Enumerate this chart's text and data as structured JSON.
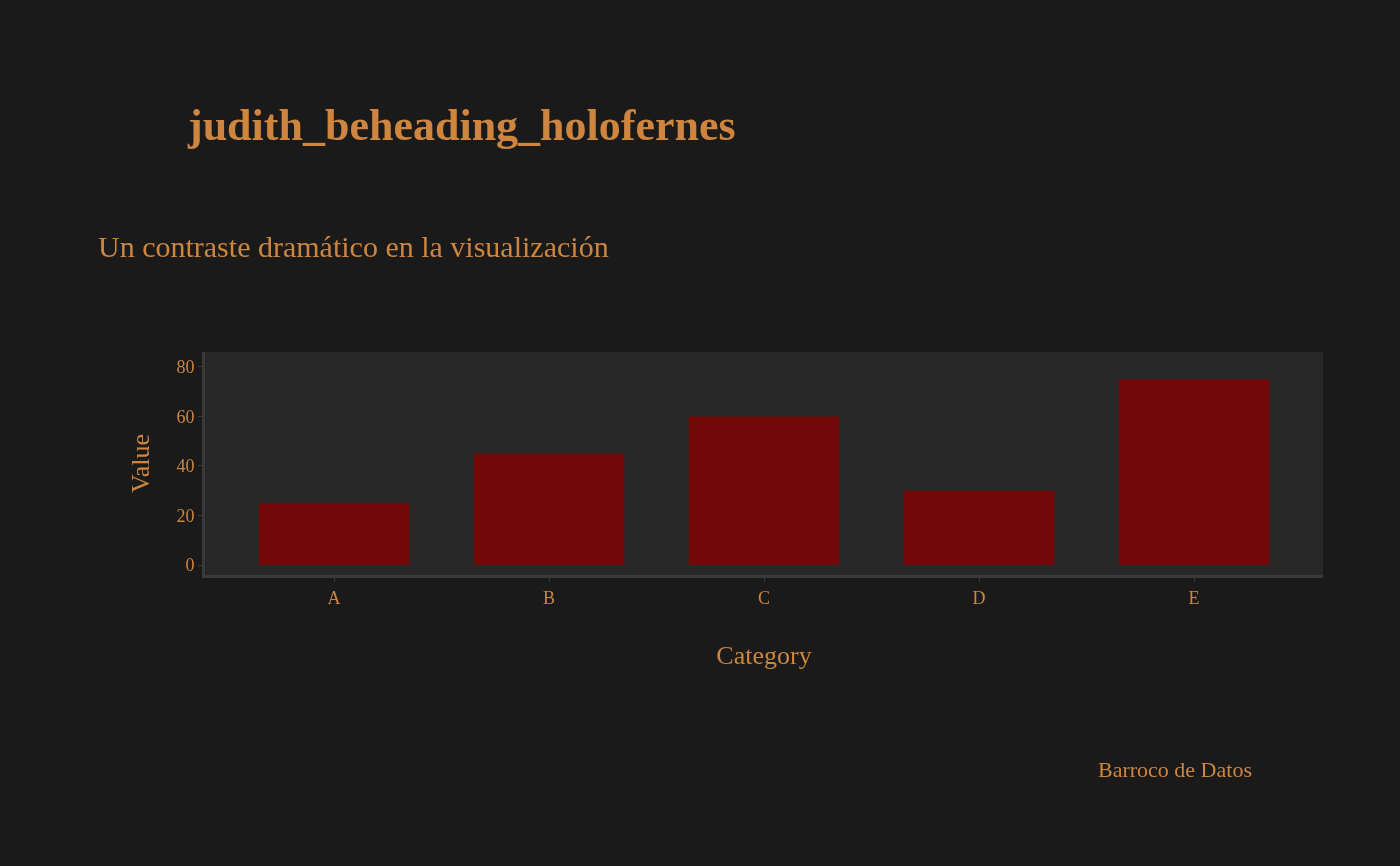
{
  "chart_data": {
    "type": "bar",
    "title": "judith_beheading_holofernes",
    "subtitle": "Un contraste dramático en la visualización",
    "xlabel": "Category",
    "ylabel": "Value",
    "categories": [
      "A",
      "B",
      "C",
      "D",
      "E"
    ],
    "values": [
      25,
      45,
      60,
      30,
      75
    ],
    "color": "#720808",
    "ylim": [
      -4,
      86
    ],
    "yticks": [
      0,
      20,
      40,
      60,
      80
    ],
    "grid": false,
    "annotations": [
      "Barroco de Datos"
    ]
  }
}
